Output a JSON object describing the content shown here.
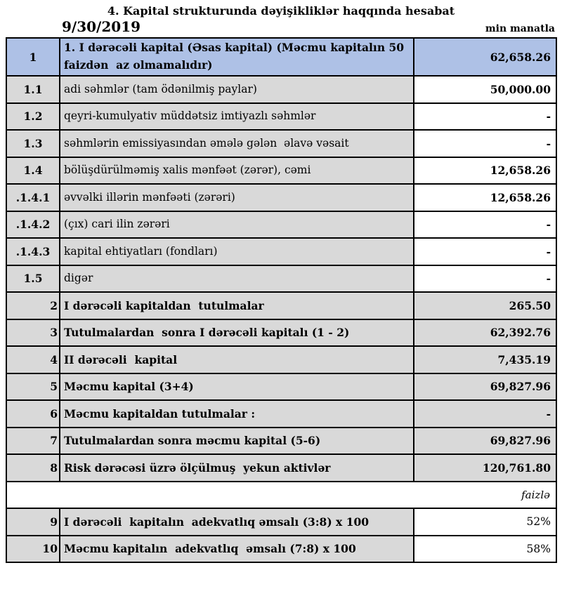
{
  "header": {
    "title": "4. Kapital strukturunda dəyişikliklər haqqında hesabat",
    "date": "9/30/2019",
    "unit_label": "min manatla"
  },
  "colors": {
    "header_row_blue": "#aec1e6",
    "row_gray": "#d9d9d9",
    "border_black": "#000000"
  },
  "table": {
    "rows": [
      {
        "type": "header",
        "num": "1",
        "label": "1. I dərəcəli kapital (Əsas kapital) (Məcmu kapitalın 50 faizdən  az olmamalıdır)",
        "value": "62,658.26"
      },
      {
        "type": "sub",
        "num": "1.1",
        "label": "adi səhmlər (tam ödənilmiş paylar)",
        "value": "50,000.00"
      },
      {
        "type": "sub",
        "num": "1.2",
        "label": "qeyri-kumulyativ müddətsiz imtiyazlı səhmlər",
        "value": "-"
      },
      {
        "type": "sub",
        "num": "1.3",
        "label": "səhmlərin emissiyasından əmələ gələn  əlavə vəsait",
        "value": "-"
      },
      {
        "type": "sub",
        "num": "1.4",
        "label": "bölüşdürülməmiş xalis mənfəət (zərər), cəmi",
        "value": "12,658.26"
      },
      {
        "type": "sub",
        "num": ".1.4.1",
        "label": "əvvəlki illərin mənfəəti (zərəri)",
        "value": "12,658.26"
      },
      {
        "type": "sub",
        "num": ".1.4.2",
        "label": "(çıx) cari ilin zərəri",
        "value": "-"
      },
      {
        "type": "sub",
        "num": ".1.4.3",
        "label": "kapital ehtiyatları (fondları)",
        "value": "-"
      },
      {
        "type": "sub",
        "num": "1.5",
        "label": "digər",
        "value": "-"
      },
      {
        "type": "total",
        "num": "2",
        "label": "I dərəcəli kapitaldan  tutulmalar",
        "value": "265.50"
      },
      {
        "type": "total",
        "num": "3",
        "label": "Tutulmalardan  sonra I dərəcəli kapitalı (1 - 2)",
        "value": "62,392.76"
      },
      {
        "type": "total",
        "num": "4",
        "label": "II dərəcəli  kapital",
        "value": "7,435.19"
      },
      {
        "type": "total",
        "num": "5",
        "label": "Məcmu kapital (3+4)",
        "value": "69,827.96"
      },
      {
        "type": "total",
        "num": "6",
        "label": "Məcmu kapitaldan tutulmalar :",
        "value": "-"
      },
      {
        "type": "total",
        "num": "7",
        "label": "Tutulmalardan sonra məcmu kapital (5-6)",
        "value": "69,827.96"
      },
      {
        "type": "total",
        "num": "8",
        "label": "Risk dərəcəsi üzrə ölçülmuş  yekun aktivlər",
        "value": "120,761.80"
      },
      {
        "type": "note",
        "value": "faizlə"
      },
      {
        "type": "ratio",
        "num": "9",
        "label": "I dərəcəli  kapitalın  adekvatlıq əmsalı (3:8) x 100",
        "value": "52%"
      },
      {
        "type": "ratio",
        "num": "10",
        "label": "Məcmu kapitalın  adekvatlıq  əmsalı (7:8) x 100",
        "value": "58%"
      }
    ]
  }
}
